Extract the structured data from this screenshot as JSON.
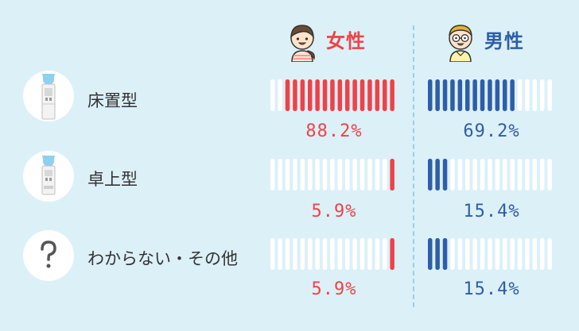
{
  "headers": {
    "female": {
      "label": "女性",
      "color": "#ef4247"
    },
    "male": {
      "label": "男性",
      "color": "#2e5ea9"
    }
  },
  "rows": [
    {
      "label": "床置型",
      "icon": "floor-water-server-icon",
      "female_label": "88.2%",
      "male_label": "69.2%"
    },
    {
      "label": "卓上型",
      "icon": "tabletop-water-server-icon",
      "female_label": "5.9%",
      "male_label": "15.4%"
    },
    {
      "label": "わからない・その他",
      "icon": "question-mark-icon",
      "female_label": "5.9%",
      "male_label": "15.4%"
    }
  ],
  "chart_data": {
    "type": "bar",
    "categories": [
      "床置型",
      "卓上型",
      "わからない・その他"
    ],
    "series": [
      {
        "name": "女性",
        "values": [
          88.2,
          5.9,
          5.9
        ]
      },
      {
        "name": "男性",
        "values": [
          69.2,
          15.4,
          15.4
        ]
      }
    ],
    "ylim": [
      0,
      100
    ],
    "bars_per_gauge": 17,
    "female_fill_direction": "right-to-left",
    "male_fill_direction": "left-to-right",
    "colors": {
      "female": "#ef4247",
      "male": "#2e5ea9",
      "empty": "#ffffff"
    }
  }
}
